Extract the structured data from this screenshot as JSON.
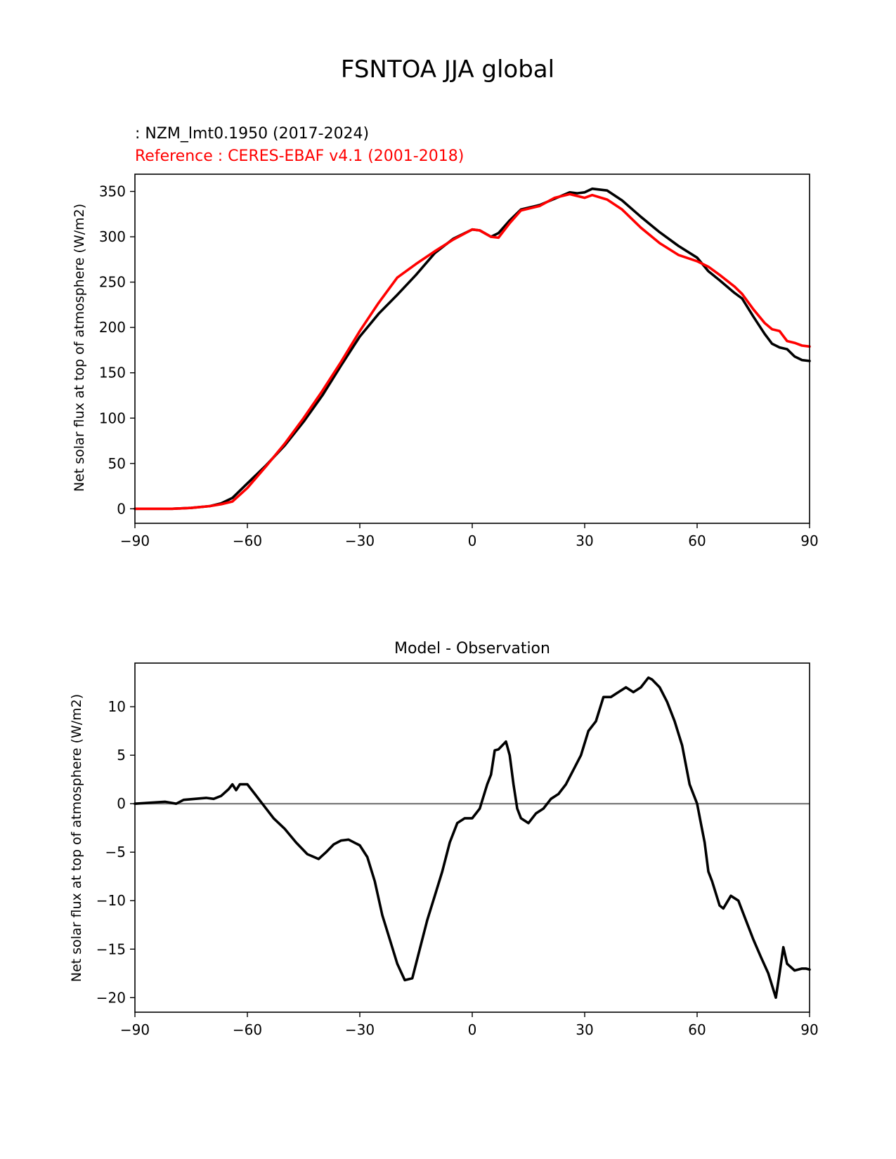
{
  "figure_title": "FSNTOA JJA global",
  "chart_data": [
    {
      "type": "line",
      "test_label": " : NZM_lmt0.1950 (2017-2024)",
      "ref_label": "Reference : CERES-EBAF v4.1 (2001-2018)",
      "xlabel": "",
      "ylabel": "Net solar flux at top of atmosphere (W/m2)",
      "xlim": [
        -90,
        90
      ],
      "ylim": [
        -16,
        369
      ],
      "xticks": [
        -90,
        -60,
        -30,
        0,
        30,
        60,
        90
      ],
      "xtick_labels": [
        "−90",
        "−60",
        "−30",
        "0",
        "30",
        "60",
        "90"
      ],
      "yticks": [
        0,
        50,
        100,
        150,
        200,
        250,
        300,
        350
      ],
      "ytick_labels": [
        "0",
        "50",
        "100",
        "150",
        "200",
        "250",
        "300",
        "350"
      ],
      "series": [
        {
          "name": "NZM_lmt0.1950 (2017-2024)",
          "color": "#000000",
          "x": [
            -90,
            -80,
            -75,
            -70,
            -67,
            -64,
            -60,
            -55,
            -50,
            -45,
            -40,
            -35,
            -30,
            -25,
            -20,
            -15,
            -10,
            -5,
            0,
            2,
            5,
            7,
            10,
            13,
            18,
            22,
            26,
            28,
            30,
            32,
            36,
            40,
            45,
            50,
            55,
            60,
            63,
            66,
            70,
            72,
            75,
            78,
            80,
            82,
            84,
            86,
            88,
            90
          ],
          "y": [
            0,
            0,
            1,
            3,
            6,
            12,
            28,
            48,
            70,
            96,
            125,
            158,
            190,
            215,
            236,
            258,
            282,
            298,
            308,
            307,
            300,
            304,
            318,
            330,
            335,
            342,
            349,
            348,
            349,
            353,
            351,
            340,
            322,
            305,
            290,
            277,
            262,
            252,
            238,
            232,
            212,
            193,
            182,
            178,
            176,
            168,
            164,
            163
          ]
        },
        {
          "name": "CERES-EBAF v4.1 (2001-2018)",
          "color": "#ff0000",
          "x": [
            -90,
            -80,
            -75,
            -70,
            -67,
            -64,
            -60,
            -55,
            -50,
            -45,
            -40,
            -35,
            -30,
            -25,
            -20,
            -15,
            -10,
            -5,
            0,
            2,
            5,
            7,
            10,
            13,
            18,
            22,
            26,
            28,
            30,
            32,
            36,
            40,
            45,
            50,
            55,
            60,
            63,
            66,
            70,
            72,
            75,
            78,
            80,
            82,
            84,
            86,
            88,
            90
          ],
          "y": [
            0,
            0,
            1,
            3,
            5,
            8,
            23,
            47,
            72,
            100,
            130,
            162,
            196,
            227,
            255,
            270,
            284,
            297,
            308,
            307,
            300,
            299,
            315,
            329,
            334,
            343,
            347,
            345,
            343,
            346,
            341,
            330,
            310,
            293,
            280,
            273,
            267,
            258,
            245,
            237,
            220,
            205,
            198,
            196,
            185,
            183,
            180,
            179
          ]
        }
      ]
    },
    {
      "type": "line",
      "title": "Model - Observation",
      "xlabel": "",
      "ylabel": "Net solar flux at top of atmosphere (W/m2)",
      "xlim": [
        -90,
        90
      ],
      "ylim": [
        -21.5,
        14.5
      ],
      "xticks": [
        -90,
        -60,
        -30,
        0,
        30,
        60,
        90
      ],
      "xtick_labels": [
        "−90",
        "−60",
        "−30",
        "0",
        "30",
        "60",
        "90"
      ],
      "yticks": [
        -20,
        -15,
        -10,
        -5,
        0,
        5,
        10
      ],
      "ytick_labels": [
        "−20",
        "−15",
        "−10",
        "−5",
        "0",
        "5",
        "10"
      ],
      "zero_line_color": "#808080",
      "series": [
        {
          "name": "Model - Observation",
          "color": "#000000",
          "x": [
            -90,
            -82,
            -79,
            -77,
            -74,
            -71,
            -69,
            -67,
            -65,
            -64,
            -63,
            -62,
            -60,
            -58,
            -56,
            -53,
            -50,
            -47,
            -44,
            -41,
            -39,
            -37,
            -35,
            -33,
            -30,
            -28,
            -26,
            -24,
            -22,
            -20,
            -18,
            -16,
            -14,
            -12,
            -10,
            -8,
            -6,
            -4,
            -2,
            0,
            2,
            4,
            5,
            6,
            7,
            9,
            10,
            11,
            12,
            13,
            15,
            17,
            19,
            21,
            23,
            25,
            27,
            29,
            31,
            33,
            35,
            37,
            39,
            41,
            43,
            45,
            47,
            48,
            50,
            52,
            54,
            56,
            58,
            60,
            61,
            62,
            63,
            64,
            66,
            67,
            69,
            71,
            73,
            75,
            77,
            79,
            81,
            82,
            83,
            84,
            86,
            88,
            89,
            90
          ],
          "y": [
            0,
            0.2,
            0,
            0.4,
            0.5,
            0.6,
            0.5,
            0.8,
            1.5,
            2.0,
            1.4,
            2.0,
            2.0,
            1.0,
            0,
            -1.5,
            -2.6,
            -4.0,
            -5.2,
            -5.7,
            -5.0,
            -4.2,
            -3.8,
            -3.7,
            -4.3,
            -5.5,
            -8.0,
            -11.5,
            -14.0,
            -16.5,
            -18.2,
            -18.0,
            -15.0,
            -12.0,
            -9.5,
            -7.0,
            -4.0,
            -2.0,
            -1.5,
            -1.5,
            -0.5,
            2.0,
            3.0,
            5.5,
            5.6,
            6.4,
            5.0,
            2.0,
            -0.5,
            -1.5,
            -2.0,
            -1.0,
            -0.5,
            0.5,
            1.0,
            2.0,
            3.5,
            5.0,
            7.5,
            8.5,
            11.0,
            11.0,
            11.5,
            12.0,
            11.5,
            12.0,
            13.0,
            12.8,
            12.0,
            10.5,
            8.5,
            6.0,
            2.0,
            0,
            -2.0,
            -4.0,
            -7.0,
            -8.0,
            -10.5,
            -10.8,
            -9.5,
            -10.0,
            -12.0,
            -14.0,
            -15.8,
            -17.5,
            -20.0,
            -17.5,
            -14.8,
            -16.5,
            -17.2,
            -17.0,
            -17.0,
            -17.1
          ]
        }
      ]
    }
  ]
}
